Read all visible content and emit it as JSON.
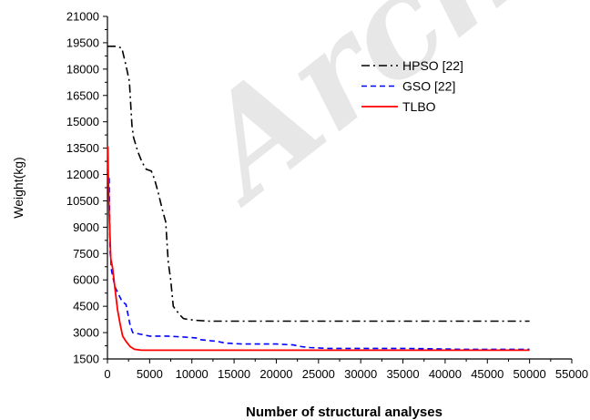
{
  "chart_data": {
    "type": "line",
    "title": "",
    "xlabel": "Number of structural analyses",
    "ylabel": "Weight(kg)",
    "xlim": [
      0,
      55000
    ],
    "ylim": [
      1500,
      21000
    ],
    "xticks": [
      0,
      5000,
      10000,
      15000,
      20000,
      25000,
      30000,
      35000,
      40000,
      45000,
      50000,
      55000
    ],
    "yticks": [
      1500,
      3000,
      4500,
      6000,
      7500,
      9000,
      10500,
      12000,
      13500,
      15000,
      16500,
      18000,
      19500,
      21000
    ],
    "grid": false,
    "legend_position": "top-right",
    "watermark": "Arch",
    "series": [
      {
        "name": "HPSO [22]",
        "color": "#000000",
        "dash": "dashdot",
        "points": [
          [
            0,
            19300
          ],
          [
            1000,
            19300
          ],
          [
            1700,
            19200
          ],
          [
            2200,
            18200
          ],
          [
            2600,
            17300
          ],
          [
            2900,
            14800
          ],
          [
            3100,
            14100
          ],
          [
            3600,
            13300
          ],
          [
            4100,
            12700
          ],
          [
            4600,
            12300
          ],
          [
            5200,
            12200
          ],
          [
            5600,
            11700
          ],
          [
            6000,
            11000
          ],
          [
            6500,
            10000
          ],
          [
            6900,
            9300
          ],
          [
            7200,
            7000
          ],
          [
            7500,
            6000
          ],
          [
            7800,
            4500
          ],
          [
            8100,
            4300
          ],
          [
            8500,
            4050
          ],
          [
            9000,
            3800
          ],
          [
            9500,
            3750
          ],
          [
            10500,
            3700
          ],
          [
            12000,
            3650
          ],
          [
            20000,
            3650
          ],
          [
            30000,
            3650
          ],
          [
            40000,
            3650
          ],
          [
            50000,
            3650
          ]
        ]
      },
      {
        "name": "GSO [22]",
        "color": "#0000ff",
        "dash": "dashed",
        "points": [
          [
            200,
            11800
          ],
          [
            300,
            7700
          ],
          [
            500,
            6500
          ],
          [
            900,
            5600
          ],
          [
            1300,
            5200
          ],
          [
            1700,
            4800
          ],
          [
            2200,
            4600
          ],
          [
            2700,
            3400
          ],
          [
            3000,
            3000
          ],
          [
            4000,
            2900
          ],
          [
            5000,
            2800
          ],
          [
            7000,
            2800
          ],
          [
            9000,
            2750
          ],
          [
            10500,
            2700
          ],
          [
            11000,
            2600
          ],
          [
            12000,
            2550
          ],
          [
            13000,
            2500
          ],
          [
            14000,
            2400
          ],
          [
            16000,
            2350
          ],
          [
            18000,
            2350
          ],
          [
            20000,
            2350
          ],
          [
            22000,
            2300
          ],
          [
            23000,
            2200
          ],
          [
            24000,
            2150
          ],
          [
            26000,
            2100
          ],
          [
            30000,
            2100
          ],
          [
            35000,
            2100
          ],
          [
            38000,
            2080
          ],
          [
            42000,
            2050
          ],
          [
            50000,
            2050
          ]
        ]
      },
      {
        "name": "TLBO",
        "color": "#ff0000",
        "dash": "solid",
        "points": [
          [
            50,
            13600
          ],
          [
            100,
            12000
          ],
          [
            200,
            9800
          ],
          [
            300,
            8500
          ],
          [
            400,
            7200
          ],
          [
            600,
            6700
          ],
          [
            900,
            5500
          ],
          [
            1200,
            4300
          ],
          [
            1500,
            3500
          ],
          [
            1800,
            2800
          ],
          [
            2200,
            2500
          ],
          [
            2700,
            2200
          ],
          [
            3200,
            2050
          ],
          [
            4000,
            2000
          ],
          [
            6000,
            2000
          ],
          [
            10000,
            2000
          ],
          [
            20000,
            2000
          ],
          [
            30000,
            2000
          ],
          [
            40000,
            2000
          ],
          [
            50000,
            2000
          ]
        ]
      }
    ]
  }
}
